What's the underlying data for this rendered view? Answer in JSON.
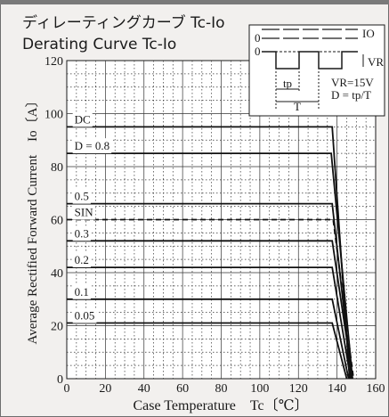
{
  "chart_data": {
    "type": "line",
    "title": "ディレーティングカーブ Tc-Io",
    "subtitle": "Derating Curve Tc-Io",
    "xlabel": "Case Temperature　Tc〔℃〕",
    "ylabel": "Average Rectified Forward Current　Io〔A〕",
    "xlim": [
      0,
      160
    ],
    "ylim": [
      0,
      120
    ],
    "x_ticks": [
      "0",
      "20",
      "40",
      "60",
      "80",
      "100",
      "120",
      "140",
      "160"
    ],
    "y_ticks": [
      "0",
      "20",
      "40",
      "60",
      "80",
      "100",
      "120"
    ],
    "grid": true,
    "series": [
      {
        "name": "DC",
        "dashed": false,
        "points": [
          [
            0,
            95
          ],
          [
            137.5,
            95
          ],
          [
            146.5,
            0
          ]
        ]
      },
      {
        "name": "D = 0.8",
        "dashed": false,
        "points": [
          [
            0,
            85
          ],
          [
            137,
            85
          ],
          [
            148,
            0
          ]
        ]
      },
      {
        "name": "0.5",
        "dashed": false,
        "points": [
          [
            0,
            66
          ],
          [
            137.5,
            66
          ],
          [
            147.5,
            0
          ]
        ]
      },
      {
        "name": "SIN",
        "dashed": true,
        "points": [
          [
            0,
            60
          ],
          [
            138,
            60
          ],
          [
            148.5,
            0
          ]
        ]
      },
      {
        "name": "0.3",
        "dashed": false,
        "points": [
          [
            0,
            52
          ],
          [
            137.5,
            52
          ],
          [
            148,
            0
          ]
        ]
      },
      {
        "name": "0.2",
        "dashed": false,
        "points": [
          [
            0,
            42
          ],
          [
            137.5,
            42
          ],
          [
            147,
            0
          ]
        ]
      },
      {
        "name": "0.1",
        "dashed": false,
        "points": [
          [
            0,
            30
          ],
          [
            137.5,
            30
          ],
          [
            146,
            0
          ]
        ]
      },
      {
        "name": "0.05",
        "dashed": false,
        "points": [
          [
            0,
            21
          ],
          [
            137.5,
            21
          ],
          [
            145,
            0
          ]
        ]
      }
    ],
    "inset": {
      "label_io": "IO",
      "label_vr": "VR",
      "label_zero": "0",
      "label_tp": "tp",
      "label_t": "T",
      "note_vr": "VR=15V",
      "note_d": "D = tp/T"
    }
  }
}
